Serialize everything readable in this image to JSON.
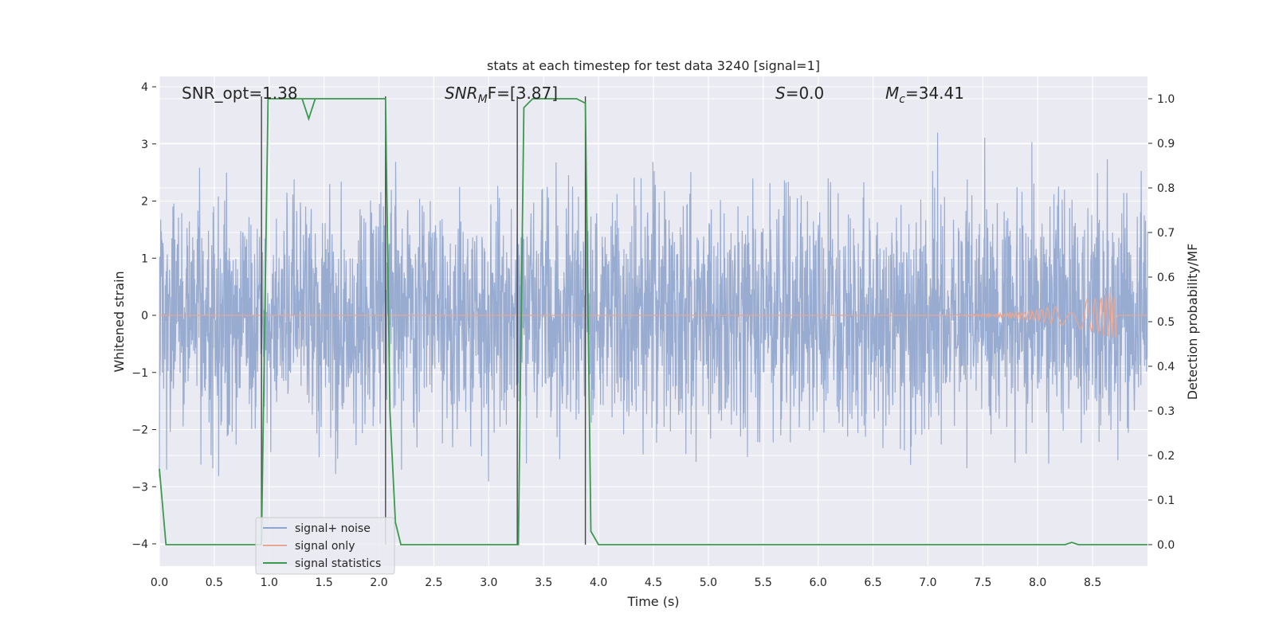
{
  "chart_data": {
    "type": "line",
    "title": "stats at each timestep for test data 3240 [signal=1]",
    "xlabel": "Time (s)",
    "ylabel_left": "Whitened strain",
    "ylabel_right": "Detection probability/MF",
    "xlim": [
      0.0,
      9.0
    ],
    "ylim_left": [
      -4.4,
      4.2
    ],
    "ylim_right": [
      -0.05,
      1.03
    ],
    "x_ticks": [
      "0.0",
      "0.5",
      "1.0",
      "1.5",
      "2.0",
      "2.5",
      "3.0",
      "3.5",
      "4.0",
      "4.5",
      "5.0",
      "5.5",
      "6.0",
      "6.5",
      "7.0",
      "7.5",
      "8.0",
      "8.5"
    ],
    "y_ticks_left": [
      "−4",
      "−3",
      "−2",
      "−1",
      "0",
      "1",
      "2",
      "3",
      "4"
    ],
    "y_ticks_right": [
      "0.0",
      "0.1",
      "0.2",
      "0.3",
      "0.4",
      "0.5",
      "0.6",
      "0.7",
      "0.8",
      "0.9",
      "1.0"
    ],
    "grid": true,
    "legend_position": "lower-left",
    "annotations": {
      "snr_opt": "SNR_opt=1.38",
      "snr_mf_base": "SNR",
      "snr_mf_sub": "M",
      "snr_mf_tail": "F=[3.87]",
      "s_var": "S",
      "s_tail": "=0.0",
      "mc_base": "M",
      "mc_sub": "c",
      "mc_tail": "=34.41"
    },
    "vertical_lines": [
      0.93,
      2.06,
      3.26,
      3.88
    ],
    "series": [
      {
        "name": "signal+ noise",
        "color": "#8fa4cc",
        "axis": "left",
        "description_stats": {
          "duration_s": 9.0,
          "amplitude_std": 1.0,
          "range": [
            -4.0,
            4.0
          ]
        }
      },
      {
        "name": "signal only",
        "color": "#e8a792",
        "axis": "left",
        "chirp": {
          "start_s": 6.3,
          "peak_s": 8.67,
          "peak_amplitude": 0.4
        }
      },
      {
        "name": "signal statistics",
        "color": "#3b9a4e",
        "axis": "right",
        "x": [
          0.0,
          0.06,
          0.1,
          0.5,
          0.9,
          0.93,
          0.99,
          1.5,
          1.3,
          1.36,
          1.42,
          1.55,
          2.06,
          2.1,
          2.15,
          2.2,
          2.5,
          3.0,
          3.24,
          3.27,
          3.32,
          3.4,
          3.6,
          3.8,
          3.88,
          3.93,
          4.0,
          4.5,
          5.0,
          6.0,
          7.0,
          8.0,
          8.25,
          8.31,
          8.37,
          8.5,
          9.0
        ],
        "y": [
          0.17,
          0.0,
          0.0,
          0.0,
          0.0,
          0.0,
          1.0,
          1.0,
          1.0,
          0.955,
          1.0,
          1.0,
          1.0,
          0.3,
          0.05,
          0.0,
          0.0,
          0.0,
          0.0,
          0.0,
          0.98,
          1.0,
          1.0,
          1.0,
          0.99,
          0.03,
          0.0,
          0.0,
          0.0,
          0.0,
          0.0,
          0.0,
          0.0,
          0.005,
          0.0,
          0.0,
          0.0
        ]
      }
    ]
  }
}
